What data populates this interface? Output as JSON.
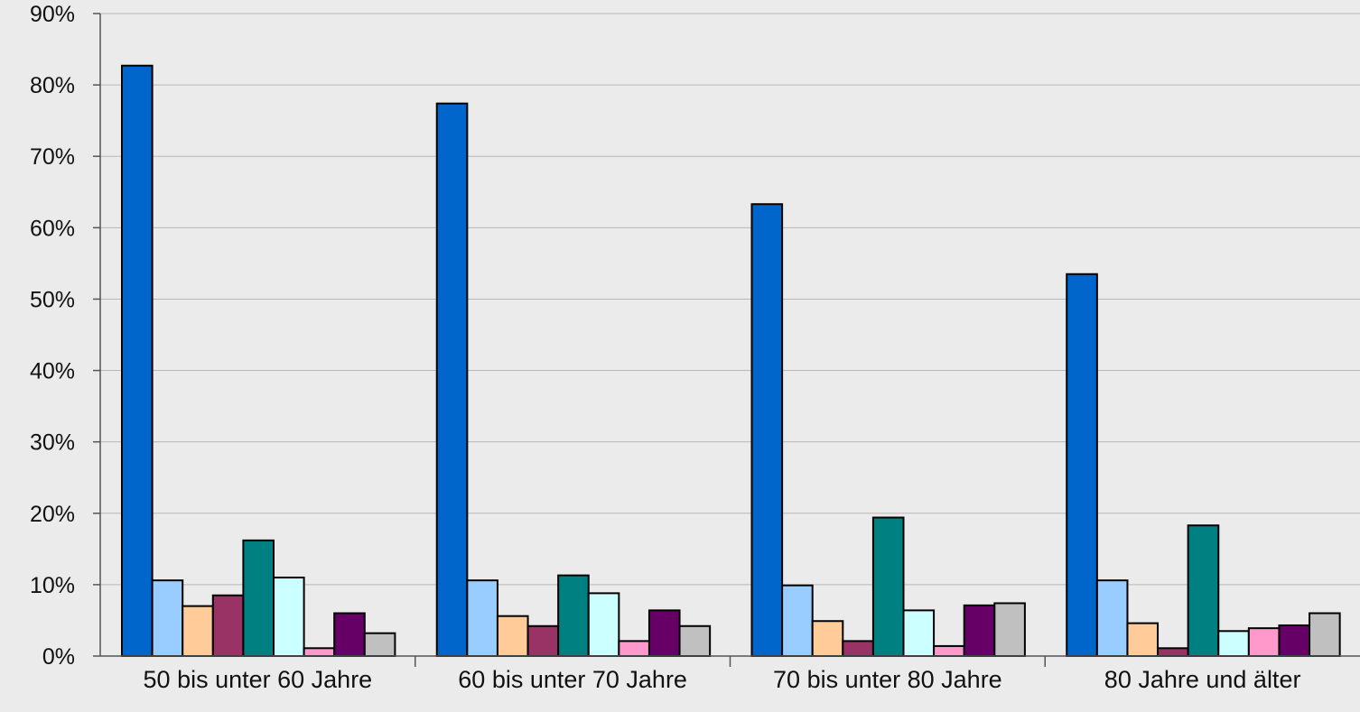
{
  "chart_data": {
    "type": "bar",
    "title": "",
    "xlabel": "",
    "ylabel": "",
    "ylim": [
      0,
      90
    ],
    "y_ticks": [
      "0%",
      "10%",
      "20%",
      "30%",
      "40%",
      "50%",
      "60%",
      "70%",
      "80%",
      "90%"
    ],
    "y_tick_values": [
      0,
      10,
      20,
      30,
      40,
      50,
      60,
      70,
      80,
      90
    ],
    "grid": true,
    "legend": "none",
    "categories": [
      "50 bis unter 60 Jahre",
      "60 bis unter 70 Jahre",
      "70 bis unter 80 Jahre",
      "80 Jahre und älter"
    ],
    "series": [
      {
        "color": "#0066cc",
        "values": [
          82.7,
          77.4,
          63.3,
          53.5
        ]
      },
      {
        "color": "#99ccff",
        "values": [
          10.6,
          10.6,
          9.9,
          10.6
        ]
      },
      {
        "color": "#ffcc99",
        "values": [
          7.0,
          5.6,
          4.9,
          4.6
        ]
      },
      {
        "color": "#993366",
        "values": [
          8.5,
          4.2,
          2.1,
          1.1
        ]
      },
      {
        "color": "#008080",
        "values": [
          16.2,
          11.3,
          19.4,
          18.3
        ]
      },
      {
        "color": "#ccffff",
        "values": [
          11.0,
          8.8,
          6.4,
          3.5
        ]
      },
      {
        "color": "#ff99cc",
        "values": [
          1.1,
          2.1,
          1.4,
          3.9
        ]
      },
      {
        "color": "#660066",
        "values": [
          6.0,
          6.4,
          7.1,
          4.3
        ]
      },
      {
        "color": "#c0c0c0",
        "values": [
          3.2,
          4.2,
          7.4,
          6.0
        ]
      }
    ]
  }
}
